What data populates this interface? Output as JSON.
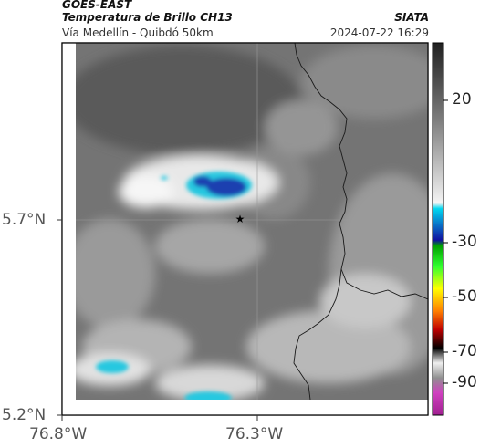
{
  "header": {
    "left_line1": "GOES-EAST",
    "left_line2": "Temperatura de Brillo CH13",
    "left_line3": "Vía Medellín - Quibdó 50km",
    "right_line2": "SIATA",
    "right_line3": "2024-07-22 16:29"
  },
  "axes": {
    "y_ticks": [
      "5.7°N",
      "5.2°N"
    ],
    "x_ticks": [
      "76.8°W",
      "76.3°W"
    ]
  },
  "colorbar": {
    "labels": [
      "20",
      "-30",
      "-50",
      "-70",
      "-90"
    ]
  },
  "colors": {
    "cold_cloud_blue": "#1e3fb0",
    "cold_cloud_cyan": "#28c8e0",
    "warm_gray": "#6e6e6e"
  },
  "map": {
    "marker": "star-marker",
    "borders": "department-border-lines"
  }
}
